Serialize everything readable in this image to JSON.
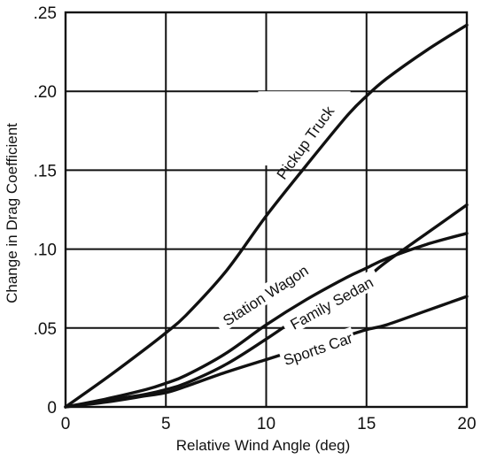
{
  "chart_data": {
    "type": "line",
    "xlabel": "Relative Wind Angle (deg)",
    "ylabel": "Change in Drag Coefficient",
    "xlim": [
      0,
      20
    ],
    "ylim": [
      0,
      0.25
    ],
    "x_ticks": [
      0,
      5,
      10,
      15,
      20
    ],
    "x_tick_labels": [
      "0",
      "5",
      "10",
      "15",
      "20"
    ],
    "y_ticks": [
      0,
      0.05,
      0.1,
      0.15,
      0.2,
      0.25
    ],
    "y_tick_labels": [
      "0",
      ".05",
      ".10",
      ".15",
      ".20",
      ".25"
    ],
    "grid": true,
    "series": [
      {
        "name": "Pickup Truck",
        "x": [
          0,
          2,
          4,
          5,
          6,
          8,
          10,
          12,
          14,
          15,
          16,
          18,
          20
        ],
        "y": [
          0,
          0.018,
          0.037,
          0.047,
          0.058,
          0.086,
          0.121,
          0.153,
          0.184,
          0.197,
          0.208,
          0.226,
          0.242
        ]
      },
      {
        "name": "Station Wagon",
        "x": [
          0,
          2,
          4,
          5,
          6,
          8,
          10,
          12,
          14,
          15,
          16,
          18,
          20
        ],
        "y": [
          0,
          0.005,
          0.011,
          0.015,
          0.02,
          0.034,
          0.052,
          0.068,
          0.082,
          0.088,
          0.094,
          0.103,
          0.11
        ]
      },
      {
        "name": "Family Sedan",
        "x": [
          0,
          2,
          4,
          5,
          6,
          8,
          10,
          12,
          14,
          15,
          16,
          18,
          20
        ],
        "y": [
          0,
          0.004,
          0.008,
          0.011,
          0.015,
          0.027,
          0.043,
          0.06,
          0.075,
          0.082,
          0.092,
          0.11,
          0.128
        ]
      },
      {
        "name": "Sports Car",
        "x": [
          0,
          2,
          4,
          5,
          6,
          8,
          10,
          12,
          14,
          15,
          16,
          18,
          20
        ],
        "y": [
          0,
          0.003,
          0.007,
          0.009,
          0.013,
          0.022,
          0.03,
          0.038,
          0.045,
          0.049,
          0.052,
          0.061,
          0.07
        ]
      }
    ]
  }
}
